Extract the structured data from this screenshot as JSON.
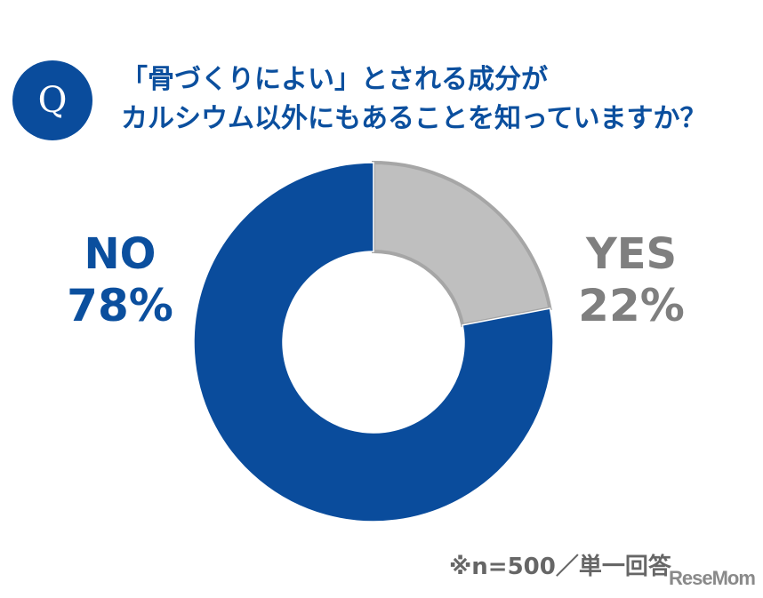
{
  "badge": {
    "letter": "Q"
  },
  "title": {
    "line1": "「骨づくりによい」とされる成分が",
    "line2": "カルシウム以外にもあることを知っていますか？"
  },
  "colors": {
    "no": "#0a4c9c",
    "yes": "#bfbfbf",
    "yes_border": "#a6a6a6",
    "title": "#0b4f9e",
    "yes_label": "#7f7f7f"
  },
  "labels": {
    "no": {
      "name": "NO",
      "pct": "78%"
    },
    "yes": {
      "name": "YES",
      "pct": "22%"
    }
  },
  "note": "※n=500／単一回答",
  "watermark": "ReseMom",
  "chart_data": {
    "type": "pie",
    "subtype": "donut",
    "title": "「骨づくりによい」とされる成分がカルシウム以外にもあることを知っていますか？",
    "categories": [
      "YES",
      "NO"
    ],
    "values": [
      22,
      78
    ],
    "unit": "%",
    "start_angle": "12 o'clock, clockwise",
    "sample": "n=500",
    "note": "※n=500／単一回答"
  }
}
